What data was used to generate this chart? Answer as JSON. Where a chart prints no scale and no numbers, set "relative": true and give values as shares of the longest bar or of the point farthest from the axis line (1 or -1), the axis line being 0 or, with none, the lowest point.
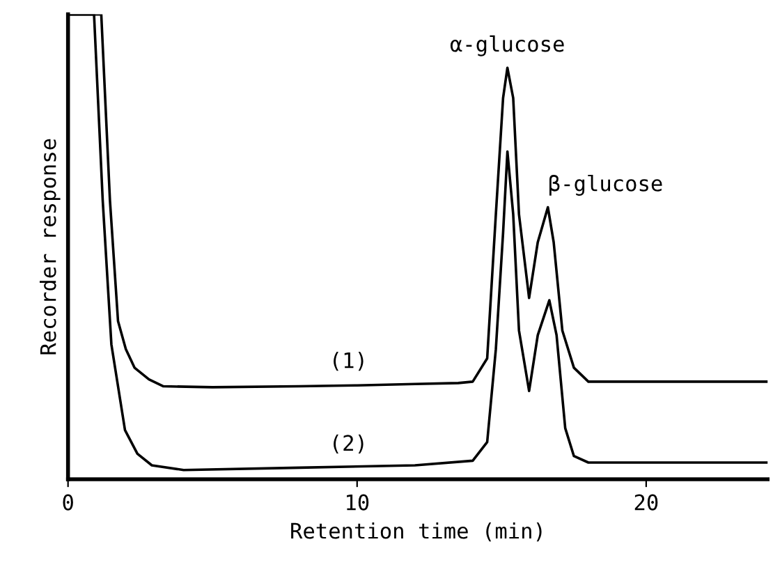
{
  "chart_data": {
    "type": "line",
    "relative": true,
    "xlabel": "Retention time (min)",
    "ylabel": "Recorder response",
    "xlim": [
      0,
      24.2
    ],
    "xticks": [
      0,
      10,
      20
    ],
    "grid": false,
    "legend": false,
    "marker": "none",
    "line_style": "solid",
    "series": [
      {
        "color": "#000000",
        "x": [
          0,
          1.15,
          1.45,
          1.73,
          2.0,
          2.3,
          2.8,
          3.3,
          5,
          8,
          10,
          12,
          13.5,
          14.0,
          14.5,
          14.8,
          15.05,
          15.2,
          15.4,
          15.6,
          15.95,
          16.25,
          16.6,
          16.8,
          17.1,
          17.5,
          18.0,
          20,
          22,
          24.2
        ],
        "values": [
          1,
          1,
          0.6,
          0.34,
          0.28,
          0.24,
          0.215,
          0.2,
          0.198,
          0.2,
          0.202,
          0.205,
          0.207,
          0.21,
          0.26,
          0.57,
          0.82,
          0.885,
          0.82,
          0.57,
          0.39,
          0.51,
          0.585,
          0.51,
          0.32,
          0.24,
          0.21,
          0.21,
          0.21,
          0.21
        ]
      },
      {
        "color": "#000000",
        "x": [
          0,
          0.9,
          1.2,
          1.5,
          1.97,
          2.4,
          2.9,
          4,
          8,
          12,
          14.0,
          14.5,
          14.8,
          15.05,
          15.2,
          15.4,
          15.6,
          15.95,
          16.25,
          16.65,
          16.9,
          17.2,
          17.5,
          18.0,
          20,
          24.2
        ],
        "values": [
          1,
          1,
          0.6,
          0.29,
          0.106,
          0.055,
          0.03,
          0.02,
          0.025,
          0.03,
          0.04,
          0.08,
          0.28,
          0.53,
          0.705,
          0.57,
          0.32,
          0.19,
          0.31,
          0.385,
          0.31,
          0.11,
          0.05,
          0.036,
          0.036,
          0.036
        ]
      }
    ],
    "annotations": [
      {
        "text": "α-glucose",
        "x": 15.2,
        "y": 0.885
      },
      {
        "text": "β-glucose",
        "x": 16.6,
        "y": 0.585
      },
      {
        "text": "(1)",
        "x": 9.7,
        "y": 0.205
      },
      {
        "text": "(2)",
        "x": 9.7,
        "y": 0.027
      }
    ]
  }
}
